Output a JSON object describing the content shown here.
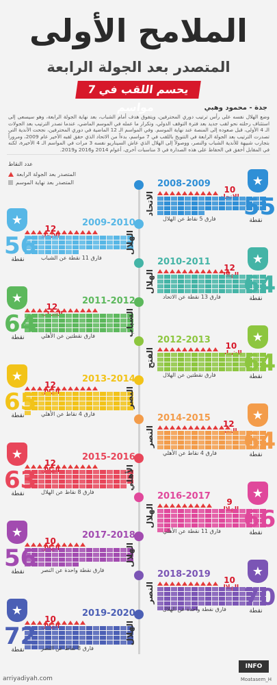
{
  "header": {
    "title": "الملامح الأولى",
    "subtitle": "المتصدر بعد الجولة الرابعة",
    "banner": "يحسم اللقب في 7 مواسم",
    "byline": "جدة - محمود وهبي",
    "intro": "وضع الهلال نفسه على رأس ترتيب دوري المحترفين، ويتفوق هدف أمام الشباب، بعد نهاية الجولة الرابعة، وهو سيسعى إلى استئناف رحلته نحو لقب جديد بعد فترة التوقف الدولي، وتكرار ما عمله في الموسم الماضي، عندما تصدر الترتيب بعد الجولات الـ 4 الأولى، قبل صعوده إلى المنصة عند نهاية الموسم. وفي المواسم الـ 12 الماضية في دوري المحترفين، نجحت الأندية التي تصدرت الترتيب بعد الجولة الرابعة في التتويج باللقب في 7 مواسم، بدءاً من الاتحاد الذي حقق لقبه الأخير عام 2009، ومروراً بتجارب شبيهة للأندية الشباب والنصر، ووصولاً إلى الهلال الذي عاش السيناريو نفسه 3 مرات في المواسم الـ 4 الأخيرة، لكنه في المقابل أخفق في الحفاظ على هذه الصدارة في 3 مناسبات أخرى، أعوام 2014 و2016 و2019."
  },
  "legend": {
    "title": "عدد النقاط",
    "top4": "المتصدر بعد الجولة الرابعة",
    "final": "المتصدر بعد نهاية الموسم"
  },
  "points_label": "نقطة",
  "seasons": [
    {
      "season": "2008-2009",
      "team": "الاتحاد",
      "top4_team": "الاتحاد",
      "top4_pts": 10,
      "points": 55,
      "lead": "فارق 5 نقاط عن الهلال",
      "color": "#2f8fd6",
      "side": "right"
    },
    {
      "season": "2009-2010",
      "team": "الهلال",
      "top4_team": "الاتحاد",
      "top4_pts": 12,
      "points": 56,
      "lead": "فارق 11 نقطة عن الشباب",
      "color": "#57b7e6",
      "side": "left"
    },
    {
      "season": "2010-2011",
      "team": "الهلال",
      "top4_team": "الهلال",
      "top4_pts": 12,
      "points": 64,
      "lead": "فارق 13 نقطة عن الاتحاد",
      "color": "#44b4a6",
      "side": "right"
    },
    {
      "season": "2011-2012",
      "team": "الشباب",
      "top4_team": "الشباب",
      "top4_pts": 12,
      "points": 64,
      "lead": "فارق نقطتين عن الأهلي",
      "color": "#5cb85c",
      "side": "left"
    },
    {
      "season": "2012-2013",
      "team": "الفتح",
      "top4_team": "الشباب",
      "top4_pts": 10,
      "points": 64,
      "lead": "فارق نقطتين عن الهلال",
      "color": "#8dc63f",
      "side": "right"
    },
    {
      "season": "2013-2014",
      "team": "النصر",
      "top4_team": "الهلال",
      "top4_pts": 12,
      "points": 65,
      "lead": "فارق 4 نقاط عن الأهلي",
      "color": "#f2c319",
      "side": "left"
    },
    {
      "season": "2014-2015",
      "team": "النصر",
      "top4_team": "النصر",
      "top4_pts": 12,
      "points": 64,
      "lead": "فارق 4 نقاط عن الأهلي",
      "color": "#f39c4a",
      "side": "right"
    },
    {
      "season": "2015-2016",
      "team": "الأهلي",
      "top4_team": "الهلال",
      "top4_pts": 12,
      "points": 63,
      "lead": "فارق 8 نقاط عن الهلال",
      "color": "#e8465a",
      "side": "left"
    },
    {
      "season": "2016-2017",
      "team": "الهلال",
      "top4_team": "الهلال",
      "top4_pts": 9,
      "points": 66,
      "lead": "فارق 11 نقطة عن الأهلي",
      "color": "#e0489b",
      "side": "right"
    },
    {
      "season": "2017-2018",
      "team": "الهلال",
      "top4_team": "الهلال",
      "top4_pts": 10,
      "points": 56,
      "lead": "فارق نقطة واحدة عن النصر",
      "color": "#a24bb0",
      "side": "left"
    },
    {
      "season": "2018-2019",
      "team": "النصر",
      "top4_team": "الهلال",
      "top4_pts": 10,
      "points": 70,
      "lead": "فارق نقطة واحدة عن الهلال",
      "color": "#7b55b5",
      "side": "right"
    },
    {
      "season": "2019-2020",
      "team": "الهلال",
      "top4_team": "الهلال",
      "top4_pts": 10,
      "points": 72,
      "lead": "فارق 8 نقاط عن النصر",
      "color": "#4b5fb5",
      "side": "left"
    }
  ],
  "footer": {
    "site": "arriyadiyah.com",
    "logo": "INFO",
    "credit": "Moatasem_H"
  }
}
